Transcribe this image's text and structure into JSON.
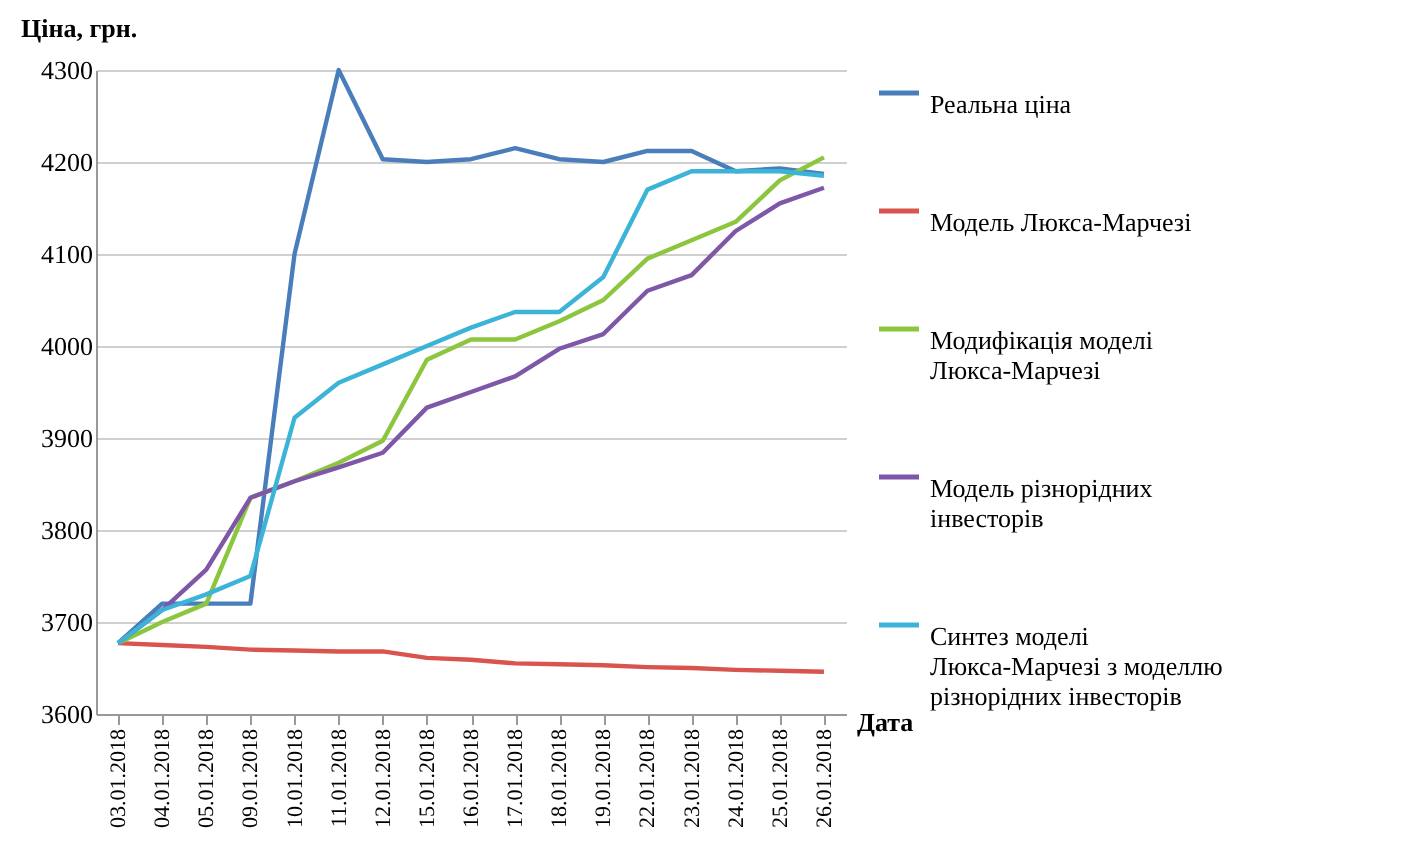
{
  "chart_data": {
    "type": "line",
    "xlabel": "Дата",
    "ylabel": "Ціна, грн.",
    "categories": [
      "03.01.2018",
      "04.01.2018",
      "05.01.2018",
      "09.01.2018",
      "10.01.2018",
      "11.01.2018",
      "12.01.2018",
      "15.01.2018",
      "16.01.2018",
      "17.01.2018",
      "18.01.2018",
      "19.01.2018",
      "22.01.2018",
      "23.01.2018",
      "24.01.2018",
      "25.01.2018",
      "26.01.2018"
    ],
    "series": [
      {
        "name": "Реальна ціна",
        "color": "#4a7ebb",
        "values": [
          3677,
          3720,
          3720,
          3720,
          4100,
          4300,
          4203,
          4200,
          4203,
          4215,
          4203,
          4200,
          4212,
          4212,
          4190,
          4193,
          4187
        ]
      },
      {
        "name": "Модель Люкса-Марчезі",
        "color": "#d9534f",
        "values": [
          3677,
          3675,
          3673,
          3670,
          3669,
          3668,
          3668,
          3661,
          3659,
          3655,
          3654,
          3653,
          3651,
          3650,
          3648,
          3647,
          3646
        ]
      },
      {
        "name": "Модифікація моделі Люкса-Марчезі",
        "color": "#8cc63f",
        "values": [
          3677,
          3700,
          3720,
          3835,
          3853,
          3873,
          3897,
          3985,
          4007,
          4007,
          4027,
          4050,
          4095,
          4115,
          4135,
          4180,
          4205
        ]
      },
      {
        "name": "Модель різнорідних інвесторів",
        "color": "#7e57a8",
        "values": [
          3677,
          3713,
          3757,
          3835,
          3853,
          3868,
          3884,
          3933,
          3950,
          3967,
          3997,
          4013,
          4060,
          4077,
          4125,
          4155,
          4172
        ]
      },
      {
        "name": "Синтез моделі Люкса-Марчезі з моделлю різнорідних інвесторів",
        "color": "#3cb4d8",
        "values": [
          3677,
          3713,
          3730,
          3750,
          3922,
          3960,
          3980,
          4000,
          4020,
          4037,
          4037,
          4075,
          4170,
          4190,
          4190,
          4190,
          4185
        ]
      }
    ],
    "ylim": [
      3600,
      4300
    ],
    "yticks": [
      3600,
      3700,
      3800,
      3900,
      4000,
      4100,
      4200,
      4300
    ],
    "grid": "y",
    "legend": "right",
    "marker": "none",
    "line_style": "solid"
  }
}
